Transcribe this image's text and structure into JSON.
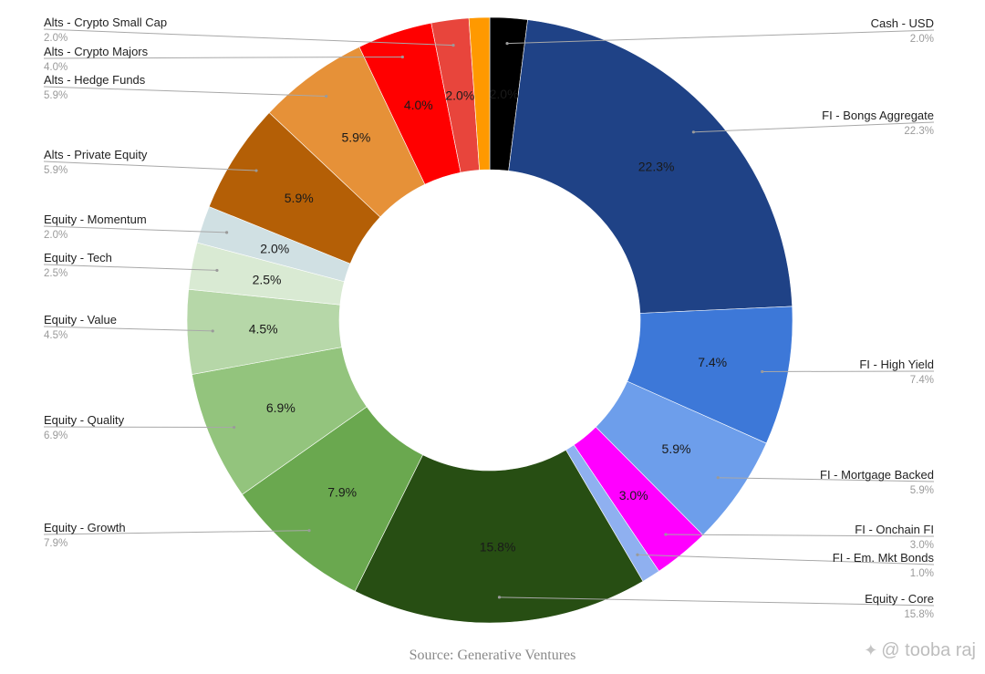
{
  "chart_data": {
    "type": "pie",
    "donut": true,
    "title": "",
    "source": "Source: Generative Ventures",
    "slices": [
      {
        "label": "Cash - USD",
        "value": 2.0,
        "display": "2.0%",
        "color": "#000000",
        "side": "right"
      },
      {
        "label": "FI - Bongs Aggregate",
        "value": 22.3,
        "display": "22.3%",
        "color": "#1f4286",
        "side": "right"
      },
      {
        "label": "FI - High Yield",
        "value": 7.4,
        "display": "7.4%",
        "color": "#3d78d8",
        "side": "right"
      },
      {
        "label": "FI - Mortgage Backed",
        "value": 5.9,
        "display": "5.9%",
        "color": "#6d9eeb",
        "side": "right"
      },
      {
        "label": "FI - Onchain FI",
        "value": 3.0,
        "display": "3.0%",
        "color": "#ff00ff",
        "side": "right"
      },
      {
        "label": "FI - Em. Mkt Bonds",
        "value": 1.0,
        "display": "1.0%",
        "color": "#8fb0f0",
        "side": "right"
      },
      {
        "label": "Equity - Core",
        "value": 15.8,
        "display": "15.8%",
        "color": "#274e13",
        "side": "right"
      },
      {
        "label": "Equity - Growth",
        "value": 7.9,
        "display": "7.9%",
        "color": "#6aa84f",
        "side": "left"
      },
      {
        "label": "Equity - Quality",
        "value": 6.9,
        "display": "6.9%",
        "color": "#93c47d",
        "side": "left"
      },
      {
        "label": "Equity - Value",
        "value": 4.5,
        "display": "4.5%",
        "color": "#b6d7a8",
        "side": "left"
      },
      {
        "label": "Equity - Tech",
        "value": 2.5,
        "display": "2.5%",
        "color": "#d9ead3",
        "side": "left"
      },
      {
        "label": "Equity - Momentum",
        "value": 2.0,
        "display": "2.0%",
        "color": "#d0e0e3",
        "side": "left"
      },
      {
        "label": "Alts - Private Equity",
        "value": 5.9,
        "display": "5.9%",
        "color": "#b45f06",
        "side": "left"
      },
      {
        "label": "Alts - Hedge Funds",
        "value": 5.9,
        "display": "5.9%",
        "color": "#e69138",
        "side": "left"
      },
      {
        "label": "Alts - Crypto Majors",
        "value": 4.0,
        "display": "4.0%",
        "color": "#ff0000",
        "side": "left"
      },
      {
        "label": "Alts - Crypto Small Cap",
        "value": 2.0,
        "display": "2.0%",
        "color": "#e8453c",
        "side": "left"
      },
      {
        "label": "",
        "value": 1.1,
        "display": "",
        "color": "#ff9900",
        "side": "left"
      }
    ]
  },
  "watermark": {
    "icon": "sparkle-logo-icon",
    "text": "@ tooba raj"
  }
}
